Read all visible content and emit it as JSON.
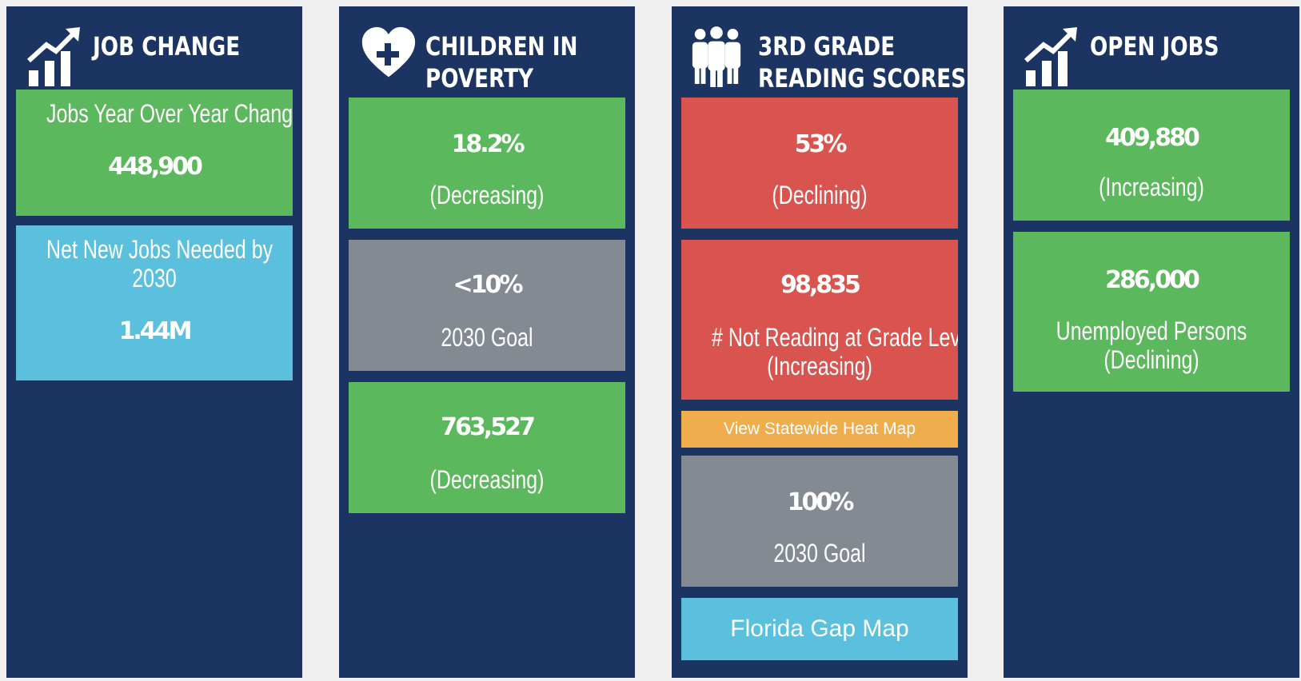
{
  "columns": {
    "job_change": {
      "title_line1": "JOB CHANGE",
      "icon": "chart-growth-icon",
      "yoy_label": "Jobs Year Over Year Change",
      "yoy_value": "448,900",
      "needed_label_line1": "Net New Jobs Needed by",
      "needed_label_line2": "2030",
      "needed_value": "1.44M"
    },
    "children_poverty": {
      "title_line1": "CHILDREN IN",
      "title_line2": "POVERTY",
      "icon": "heart-plus-icon",
      "rate_value": "18.2%",
      "rate_trend": "(Decreasing)",
      "goal_value": "<10%",
      "goal_label": "2030 Goal",
      "count_value": "763,527",
      "count_trend": "(Decreasing)"
    },
    "reading_scores": {
      "title_line1": "3RD GRADE",
      "title_line2": "READING SCORES",
      "icon": "people-group-icon",
      "rate_value": "53%",
      "rate_trend": "(Declining)",
      "count_value": "98,835",
      "count_label": "# Not Reading at Grade Level",
      "count_trend": "(Increasing)",
      "heatmap_button": "View Statewide Heat Map",
      "goal_value": "100%",
      "goal_label": "2030 Goal",
      "gap_map_button": "Florida Gap Map"
    },
    "open_jobs": {
      "title_line1": "OPEN JOBS",
      "icon": "chart-growth-icon",
      "open_value": "409,880",
      "open_trend": "(Increasing)",
      "unemployed_value": "286,000",
      "unemployed_label": "Unemployed Persons",
      "unemployed_trend": "(Declining)"
    }
  },
  "colors": {
    "panel_bg": "#1b3461",
    "green": "#5cb85c",
    "gray": "#838a92",
    "red": "#d9534f",
    "blue": "#5bc0de",
    "orange": "#f0ad4e"
  }
}
